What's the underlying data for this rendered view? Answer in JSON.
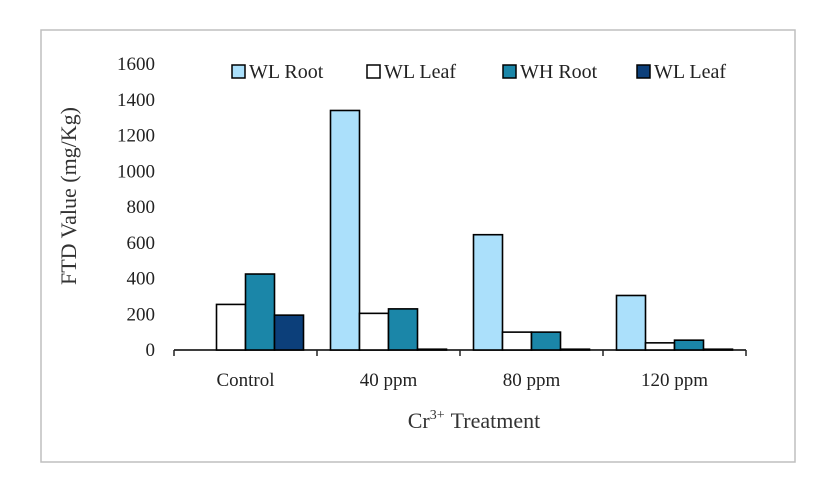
{
  "chart_data": {
    "type": "bar",
    "title": "",
    "xlabel": "Treatment",
    "xlabel_species": "Cr",
    "xlabel_superscript": "3+",
    "ylabel": "FTD Value (mg/Kg)",
    "ylim": [
      0,
      1600
    ],
    "yticks": [
      0,
      200,
      400,
      600,
      800,
      1000,
      1200,
      1400,
      1600
    ],
    "categories": [
      "Control",
      "40 ppm",
      "80 ppm",
      "120 ppm"
    ],
    "series": [
      {
        "name": "WL Root",
        "color": "#abe0fb",
        "values": [
          0,
          1340,
          645,
          305
        ]
      },
      {
        "name": "WL Leaf",
        "color": "#ffffff",
        "values": [
          255,
          205,
          100,
          40
        ]
      },
      {
        "name": "WH Root",
        "color": "#1b86a8",
        "values": [
          425,
          230,
          100,
          55
        ]
      },
      {
        "name": "WL Leaf",
        "color": "#0c3f7a",
        "values": [
          195,
          2,
          2,
          2
        ]
      }
    ],
    "legend": "top",
    "grid": false
  }
}
